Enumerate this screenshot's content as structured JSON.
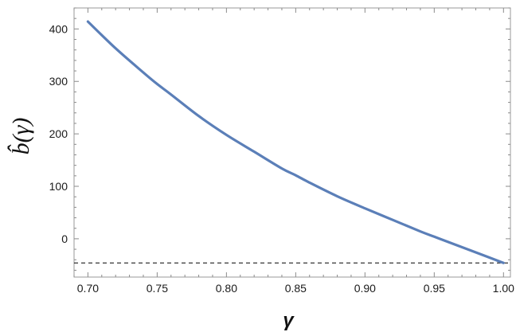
{
  "chart_data": {
    "type": "line",
    "xlabel": "γ",
    "ylabel": "b̂(γ)",
    "xlim": [
      0.69,
      1.005
    ],
    "ylim": [
      -73,
      440
    ],
    "x_ticks": [
      0.7,
      0.75,
      0.8,
      0.85,
      0.9,
      0.95,
      1.0
    ],
    "x_tick_labels": [
      "0.70",
      "0.75",
      "0.80",
      "0.85",
      "0.90",
      "0.95",
      "1.00"
    ],
    "y_ticks": [
      0,
      100,
      200,
      300,
      400
    ],
    "y_tick_labels": [
      "0",
      "100",
      "200",
      "300",
      "400"
    ],
    "grid": false,
    "series": [
      {
        "color": "#5b7fb8",
        "style": "solid",
        "x": [
          0.7,
          0.72,
          0.74,
          0.75,
          0.76,
          0.78,
          0.8,
          0.82,
          0.84,
          0.85,
          0.86,
          0.88,
          0.9,
          0.92,
          0.94,
          0.95,
          0.96,
          0.98,
          1.0
        ],
        "y": [
          414,
          363,
          317,
          295,
          275,
          234,
          198,
          166,
          134,
          121,
          107,
          81,
          58,
          36,
          14,
          4,
          -6,
          -26,
          -46
        ]
      }
    ],
    "reference_lines": [
      {
        "orientation": "horizontal",
        "y": -46,
        "color": "#000000",
        "style": "dashed"
      }
    ]
  }
}
